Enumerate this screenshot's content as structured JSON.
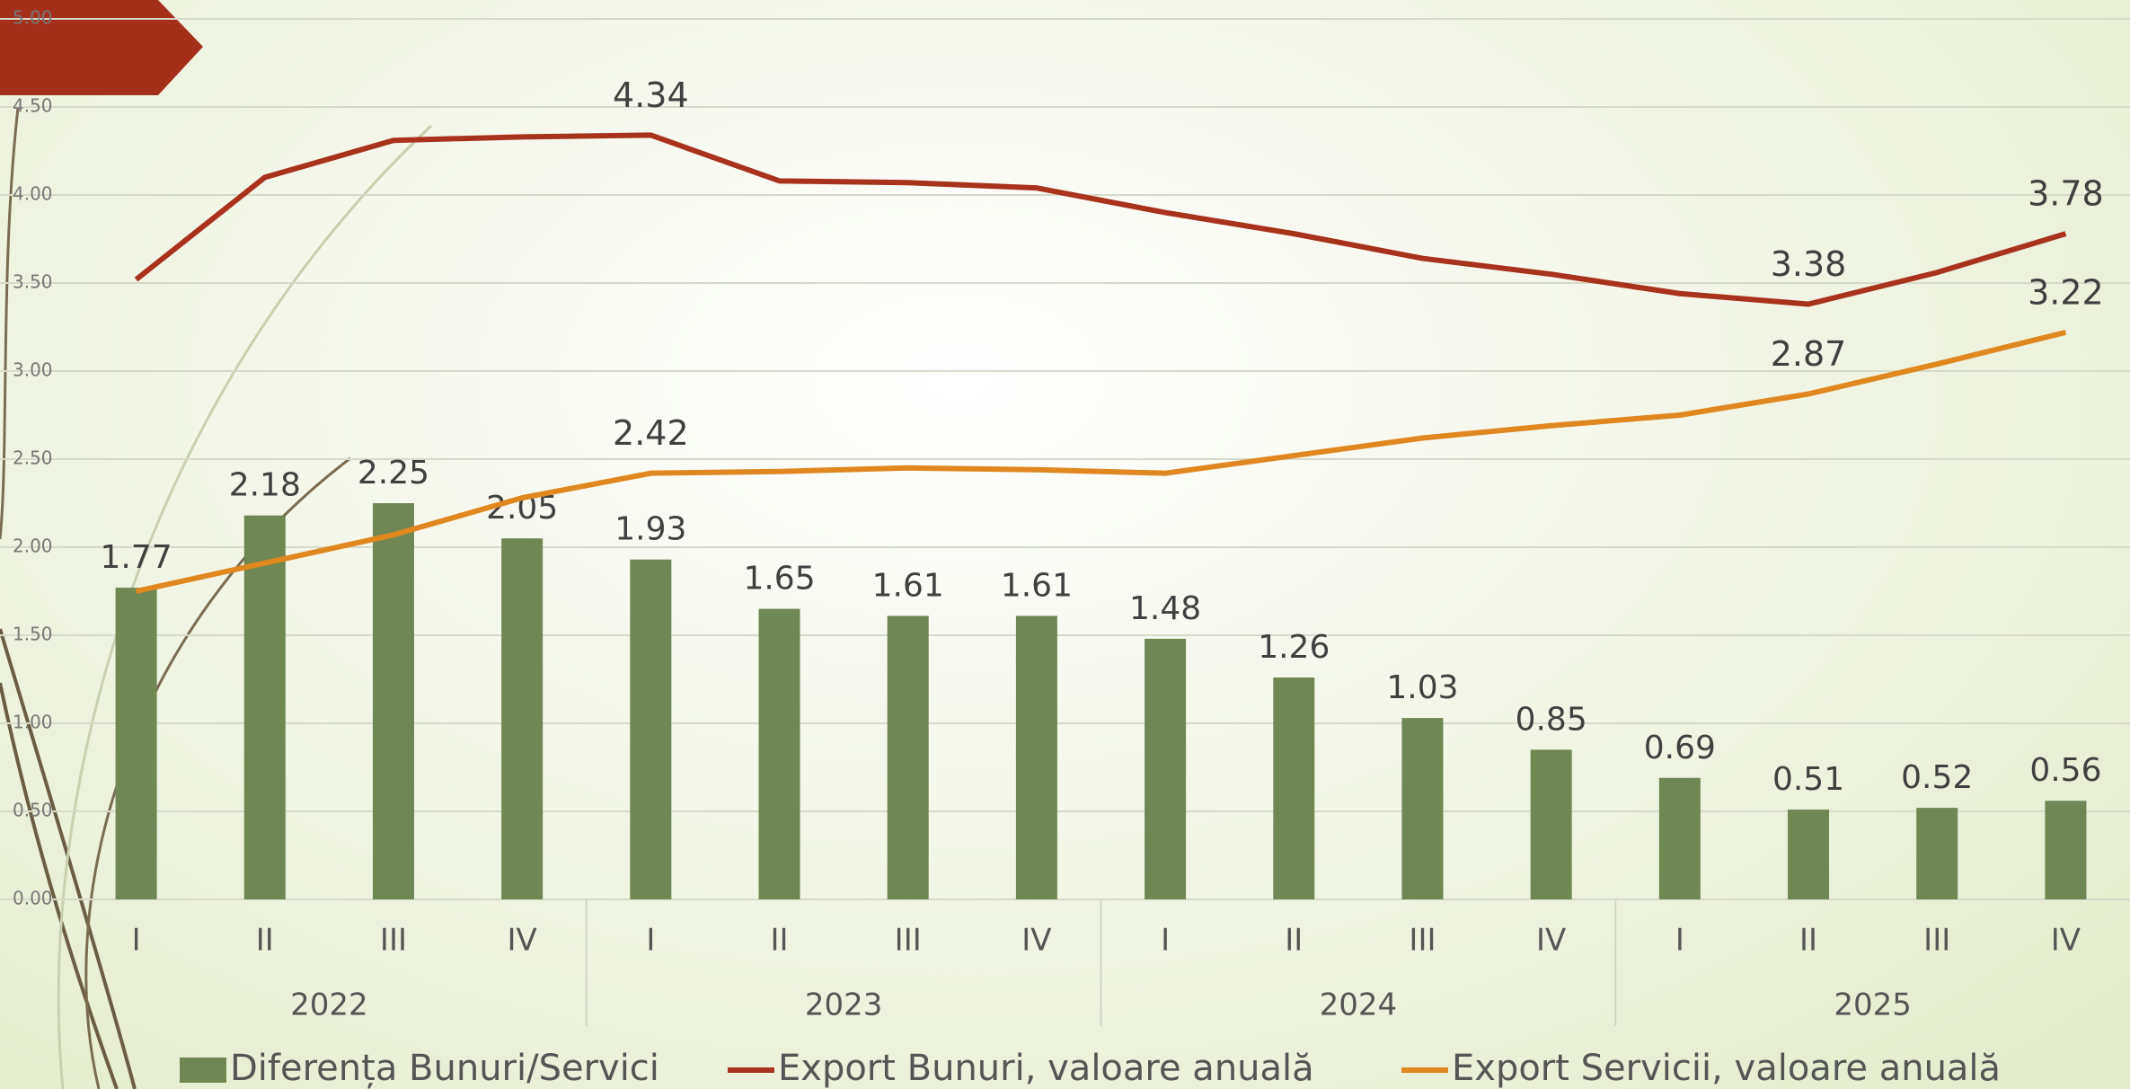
{
  "chart_data": {
    "type": "bar-line",
    "categories": [
      "I",
      "II",
      "III",
      "IV",
      "I",
      "II",
      "III",
      "IV",
      "I",
      "II",
      "III",
      "IV",
      "I",
      "II",
      "III",
      "IV"
    ],
    "groups": [
      "2022",
      "2023",
      "2024",
      "2025"
    ],
    "series": [
      {
        "name": "Diferența Bunuri/Servici",
        "type": "bar",
        "color": "#6f8753",
        "values": [
          1.77,
          2.18,
          2.25,
          2.05,
          1.93,
          1.65,
          1.61,
          1.61,
          1.48,
          1.26,
          1.03,
          0.85,
          0.69,
          0.51,
          0.52,
          0.56
        ]
      },
      {
        "name": "Export Bunuri, valoare anuală",
        "type": "line",
        "color": "#a8321b",
        "values": [
          3.52,
          4.1,
          4.31,
          4.33,
          4.34,
          4.08,
          4.07,
          4.04,
          3.9,
          3.78,
          3.64,
          3.55,
          3.44,
          3.38,
          3.56,
          3.78
        ],
        "value_labels": [
          null,
          null,
          null,
          null,
          "4.34",
          null,
          null,
          null,
          null,
          null,
          null,
          null,
          null,
          "3.38",
          null,
          "3.78"
        ]
      },
      {
        "name": "Export Servicii, valoare anuală",
        "type": "line",
        "color": "#e0871f",
        "values": [
          1.75,
          1.91,
          2.07,
          2.28,
          2.42,
          2.43,
          2.45,
          2.44,
          2.42,
          2.52,
          2.62,
          2.69,
          2.75,
          2.87,
          3.04,
          3.22
        ],
        "value_labels": [
          null,
          null,
          null,
          null,
          "2.42",
          null,
          null,
          null,
          null,
          null,
          null,
          null,
          null,
          "2.87",
          null,
          "3.22"
        ]
      }
    ],
    "ylim": [
      0,
      5
    ],
    "yticks": [
      {
        "value": 0,
        "label": "0.00"
      },
      {
        "value": 0.5,
        "label": "0.50"
      },
      {
        "value": 1,
        "label": "1.00"
      },
      {
        "value": 1.5,
        "label": "1.50"
      },
      {
        "value": 2,
        "label": "2.00"
      },
      {
        "value": 2.5,
        "label": "2.50"
      },
      {
        "value": 3,
        "label": "3.00"
      },
      {
        "value": 3.5,
        "label": "3.50"
      },
      {
        "value": 4,
        "label": "4.00"
      },
      {
        "value": 4.5,
        "label": "4.50"
      },
      {
        "value": 5,
        "label": "5.00"
      }
    ],
    "grid": true,
    "legend": "bottom"
  }
}
